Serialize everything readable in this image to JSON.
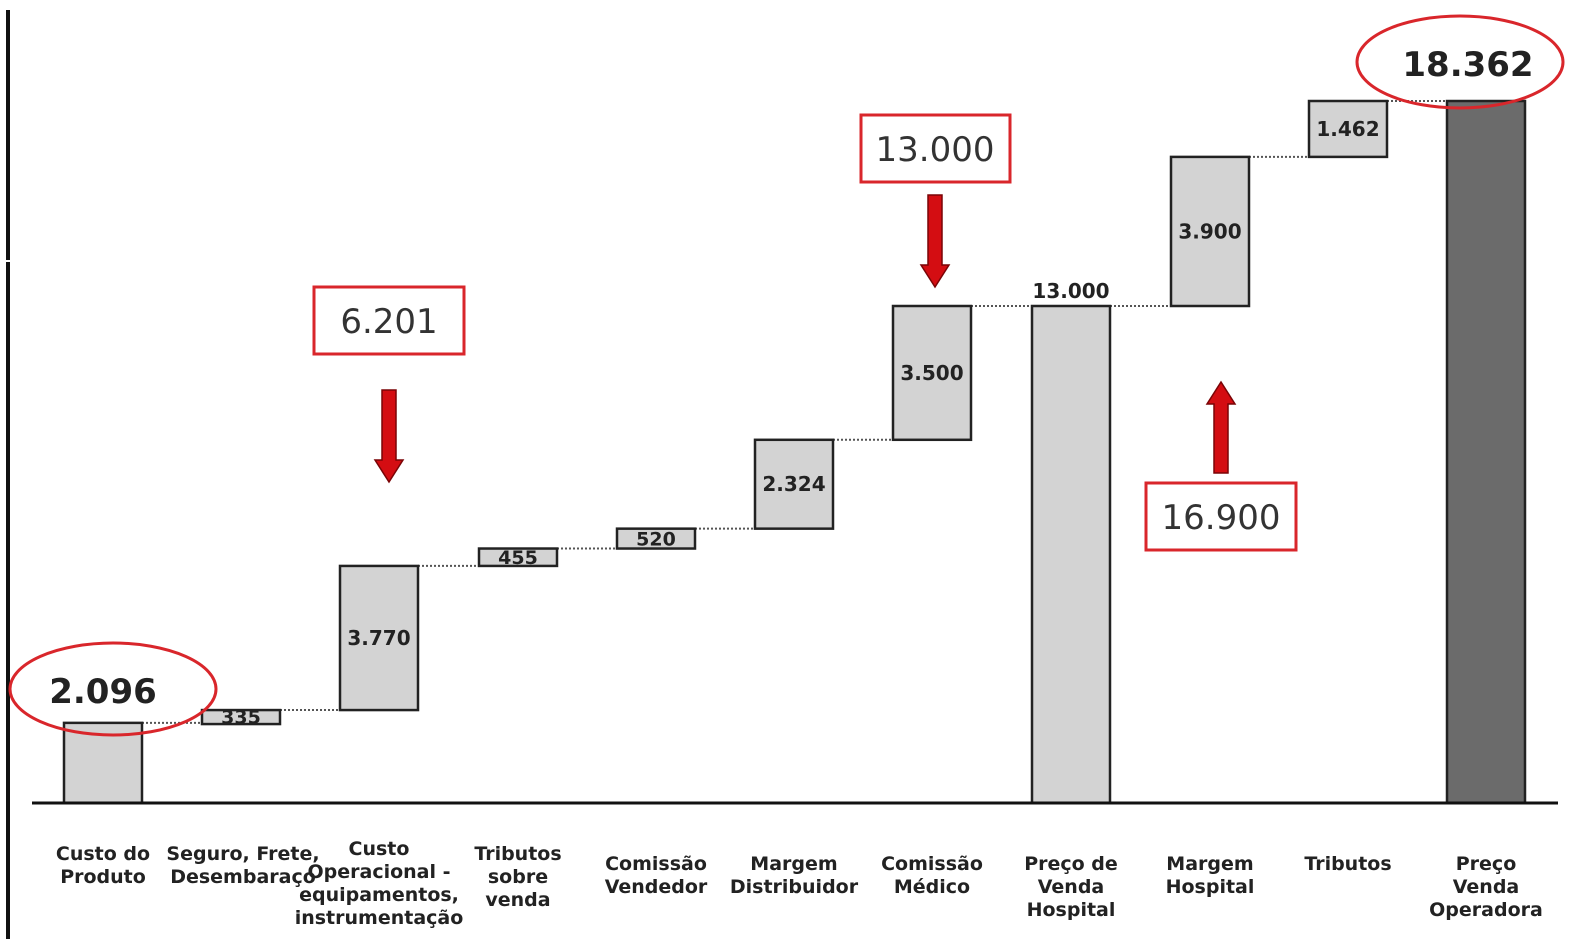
{
  "chart_data": {
    "type": "waterfall",
    "categories": [
      [
        "Custo do",
        "Produto"
      ],
      [
        "Seguro, Frete,",
        "Desembaraço"
      ],
      [
        "Custo",
        "Operacional -",
        "equipamentos,",
        "instrumentação"
      ],
      [
        "Tributos",
        "sobre",
        "venda"
      ],
      [
        "Comissão",
        "Vendedor"
      ],
      [
        "Margem",
        "Distribuidor"
      ],
      [
        "Comissão",
        "Médico"
      ],
      [
        "Preço de",
        "Venda",
        "Hospital"
      ],
      [
        "Margem",
        "Hospital"
      ],
      [
        "Tributos"
      ],
      [
        "Preço",
        "Venda",
        "Operadora"
      ]
    ],
    "bars": [
      {
        "kind": "total",
        "value": 2096,
        "label": "2.096"
      },
      {
        "kind": "delta",
        "value": 335,
        "label": "335"
      },
      {
        "kind": "delta",
        "value": 3770,
        "label": "3.770"
      },
      {
        "kind": "delta",
        "value": 455,
        "label": "455"
      },
      {
        "kind": "delta",
        "value": 520,
        "label": "520"
      },
      {
        "kind": "delta",
        "value": 2324,
        "label": "2.324"
      },
      {
        "kind": "delta",
        "value": 3500,
        "label": "3.500"
      },
      {
        "kind": "total",
        "value": 13000,
        "label": "13.000"
      },
      {
        "kind": "delta",
        "value": 3900,
        "label": "3.900"
      },
      {
        "kind": "delta",
        "value": 1462,
        "label": "1.462"
      },
      {
        "kind": "total",
        "value": 18362,
        "label": "18.362"
      }
    ],
    "callouts": [
      {
        "text": "6.201",
        "arrow": "down"
      },
      {
        "text": "13.000",
        "arrow": "down"
      },
      {
        "text": "16.900",
        "arrow": "up"
      }
    ],
    "highlight_ellipses": [
      "2.096",
      "18.362"
    ],
    "colors": {
      "bar_fill": "#d3d3d3",
      "final_bar_fill": "#6b6b6b",
      "bar_stroke": "#222222",
      "callout_red": "#d9262b",
      "arrow_red": "#d40d12"
    }
  }
}
